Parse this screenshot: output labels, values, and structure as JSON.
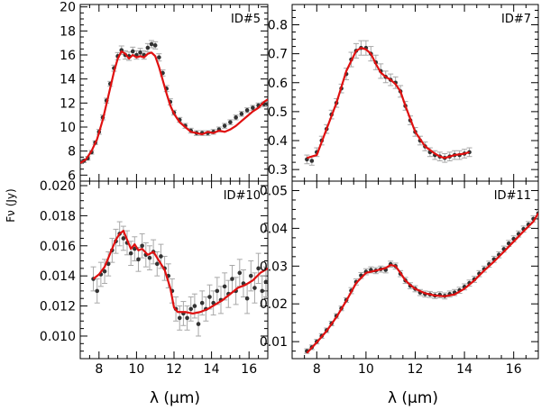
{
  "figure": {
    "ylabel": "Fν (Jy)",
    "xlabel_left": "λ (μm)",
    "xlabel_right": "λ (μm)"
  },
  "colors": {
    "model": "#e01010",
    "data": "#333333",
    "errorbar": "#a8a8a8",
    "axis": "#000000"
  },
  "chart_data": [
    {
      "id": "panel-id5",
      "type": "scatter",
      "title": "ID#5",
      "xlim": [
        7,
        17
      ],
      "ylim": [
        5.5,
        20.2
      ],
      "xticks": [
        8,
        10,
        12,
        14,
        16
      ],
      "yticks": [
        6,
        8,
        10,
        12,
        14,
        16,
        18,
        20
      ],
      "show_x_ticklabels": false,
      "series": [
        {
          "role": "data-with-errors",
          "x": [
            7.0,
            7.2,
            7.4,
            7.6,
            7.8,
            8.0,
            8.2,
            8.4,
            8.6,
            8.8,
            9.0,
            9.2,
            9.4,
            9.6,
            9.8,
            10.0,
            10.2,
            10.4,
            10.6,
            10.8,
            11.0,
            11.2,
            11.4,
            11.6,
            11.8,
            12.0,
            12.3,
            12.6,
            12.9,
            13.2,
            13.5,
            13.8,
            14.1,
            14.4,
            14.7,
            15.0,
            15.3,
            15.6,
            15.9,
            16.2,
            16.5,
            16.8,
            17.0
          ],
          "y": [
            7.1,
            7.2,
            7.4,
            7.9,
            8.7,
            9.6,
            10.8,
            12.2,
            13.6,
            14.9,
            15.9,
            16.4,
            16.0,
            15.9,
            16.3,
            16.0,
            16.2,
            16.0,
            16.6,
            16.9,
            16.8,
            15.8,
            14.5,
            13.2,
            12.1,
            11.2,
            10.6,
            10.1,
            9.7,
            9.5,
            9.5,
            9.5,
            9.6,
            9.8,
            10.1,
            10.4,
            10.8,
            11.1,
            11.4,
            11.6,
            11.8,
            11.9,
            11.9
          ],
          "err": [
            0.15,
            0.15,
            0.15,
            0.15,
            0.15,
            0.2,
            0.2,
            0.2,
            0.2,
            0.25,
            0.3,
            0.35,
            0.35,
            0.35,
            0.35,
            0.35,
            0.35,
            0.35,
            0.35,
            0.3,
            0.3,
            0.3,
            0.25,
            0.25,
            0.25,
            0.2,
            0.2,
            0.2,
            0.2,
            0.2,
            0.2,
            0.2,
            0.2,
            0.2,
            0.2,
            0.2,
            0.2,
            0.2,
            0.2,
            0.2,
            0.2,
            0.2,
            0.2
          ]
        },
        {
          "role": "model",
          "x": [
            7.0,
            7.3,
            7.6,
            7.9,
            8.2,
            8.5,
            8.8,
            9.0,
            9.2,
            9.4,
            9.6,
            9.8,
            10.0,
            10.2,
            10.4,
            10.6,
            10.8,
            11.0,
            11.2,
            11.4,
            11.6,
            11.8,
            12.0,
            12.3,
            12.6,
            12.9,
            13.2,
            13.5,
            13.8,
            14.1,
            14.4,
            14.7,
            15.0,
            15.3,
            15.6,
            15.9,
            16.2,
            16.5,
            16.8,
            17.0
          ],
          "y": [
            7.0,
            7.3,
            8.0,
            9.0,
            10.6,
            12.6,
            14.6,
            15.7,
            16.3,
            16.1,
            15.7,
            16.0,
            15.8,
            15.9,
            15.8,
            16.1,
            16.2,
            15.9,
            15.0,
            13.9,
            12.8,
            11.8,
            11.1,
            10.4,
            10.0,
            9.6,
            9.5,
            9.4,
            9.6,
            9.5,
            9.7,
            9.6,
            9.8,
            10.1,
            10.5,
            10.9,
            11.3,
            11.6,
            12.1,
            12.3
          ]
        }
      ]
    },
    {
      "id": "panel-id7",
      "type": "scatter",
      "title": "ID#7",
      "xlim": [
        7,
        17
      ],
      "ylim": [
        0.26,
        0.87
      ],
      "xticks": [
        8,
        10,
        12,
        14,
        16
      ],
      "yticks": [
        0.3,
        0.4,
        0.5,
        0.6,
        0.7,
        0.8
      ],
      "show_x_ticklabels": false,
      "series": [
        {
          "role": "data-with-errors",
          "x": [
            7.6,
            7.8,
            8.0,
            8.2,
            8.4,
            8.6,
            8.8,
            9.0,
            9.2,
            9.4,
            9.6,
            9.8,
            10.0,
            10.2,
            10.4,
            10.6,
            10.8,
            11.0,
            11.2,
            11.4,
            11.6,
            11.8,
            12.0,
            12.2,
            12.4,
            12.6,
            12.8,
            13.0,
            13.2,
            13.4,
            13.6,
            13.8,
            14.0,
            14.2
          ],
          "y": [
            0.335,
            0.33,
            0.36,
            0.4,
            0.44,
            0.49,
            0.53,
            0.58,
            0.63,
            0.68,
            0.71,
            0.72,
            0.72,
            0.7,
            0.67,
            0.64,
            0.62,
            0.61,
            0.6,
            0.57,
            0.52,
            0.47,
            0.43,
            0.4,
            0.38,
            0.36,
            0.35,
            0.345,
            0.34,
            0.345,
            0.35,
            0.35,
            0.355,
            0.36
          ],
          "err": [
            0.015,
            0.015,
            0.015,
            0.015,
            0.015,
            0.015,
            0.015,
            0.015,
            0.02,
            0.025,
            0.025,
            0.025,
            0.025,
            0.025,
            0.025,
            0.025,
            0.02,
            0.02,
            0.02,
            0.02,
            0.015,
            0.015,
            0.015,
            0.015,
            0.015,
            0.015,
            0.015,
            0.015,
            0.015,
            0.015,
            0.015,
            0.015,
            0.015,
            0.015
          ]
        },
        {
          "role": "model",
          "x": [
            7.6,
            8.0,
            8.4,
            8.8,
            9.2,
            9.6,
            9.8,
            10.0,
            10.2,
            10.4,
            10.6,
            10.8,
            11.0,
            11.2,
            11.4,
            11.6,
            11.8,
            12.0,
            12.4,
            12.8,
            13.0,
            13.2,
            13.6,
            14.0,
            14.2
          ],
          "y": [
            0.34,
            0.35,
            0.44,
            0.53,
            0.64,
            0.71,
            0.72,
            0.715,
            0.7,
            0.665,
            0.635,
            0.62,
            0.61,
            0.595,
            0.57,
            0.52,
            0.475,
            0.43,
            0.38,
            0.355,
            0.345,
            0.34,
            0.35,
            0.355,
            0.36
          ]
        }
      ]
    },
    {
      "id": "panel-id10",
      "type": "scatter",
      "title": "ID#10",
      "xlim": [
        7,
        17
      ],
      "ylim": [
        0.0085,
        0.0203
      ],
      "xticks": [
        8,
        10,
        12,
        14,
        16
      ],
      "yticks": [
        0.01,
        0.012,
        0.014,
        0.016,
        0.018,
        0.02
      ],
      "ytick_labels": [
        "0.010",
        "0.012",
        "0.014",
        "0.016",
        "0.018",
        "0.020"
      ],
      "show_x_ticklabels": true,
      "series": [
        {
          "role": "data-with-errors",
          "x": [
            7.7,
            7.9,
            8.1,
            8.3,
            8.5,
            8.7,
            8.9,
            9.1,
            9.3,
            9.5,
            9.7,
            9.9,
            10.1,
            10.3,
            10.5,
            10.7,
            10.9,
            11.1,
            11.3,
            11.5,
            11.7,
            11.9,
            12.1,
            12.3,
            12.5,
            12.7,
            12.9,
            13.1,
            13.3,
            13.5,
            13.7,
            13.9,
            14.1,
            14.3,
            14.5,
            14.7,
            14.9,
            15.1,
            15.3,
            15.5,
            15.7,
            15.9,
            16.1,
            16.3,
            16.5,
            16.7,
            16.9
          ],
          "y": [
            0.0138,
            0.013,
            0.0141,
            0.0143,
            0.0148,
            0.0157,
            0.0163,
            0.0168,
            0.0165,
            0.0162,
            0.0155,
            0.0158,
            0.0151,
            0.016,
            0.0154,
            0.0152,
            0.0156,
            0.0148,
            0.0153,
            0.0145,
            0.014,
            0.013,
            0.0118,
            0.0112,
            0.0115,
            0.0112,
            0.0118,
            0.012,
            0.0108,
            0.0122,
            0.0118,
            0.0126,
            0.0122,
            0.013,
            0.0124,
            0.0133,
            0.0128,
            0.0138,
            0.013,
            0.0142,
            0.0135,
            0.0125,
            0.014,
            0.0132,
            0.0145,
            0.013,
            0.0136
          ],
          "err": [
            0.0008,
            0.0008,
            0.0008,
            0.0008,
            0.0008,
            0.0008,
            0.0008,
            0.0008,
            0.0008,
            0.0008,
            0.0008,
            0.0008,
            0.0008,
            0.0008,
            0.0008,
            0.0008,
            0.0008,
            0.0008,
            0.0008,
            0.0008,
            0.0008,
            0.0008,
            0.0008,
            0.0008,
            0.0008,
            0.0008,
            0.0008,
            0.0008,
            0.0008,
            0.0008,
            0.0008,
            0.0008,
            0.0008,
            0.0009,
            0.0009,
            0.0009,
            0.0009,
            0.0009,
            0.0009,
            0.0009,
            0.0009,
            0.001,
            0.001,
            0.001,
            0.001,
            0.001,
            0.001
          ]
        },
        {
          "role": "model",
          "x": [
            7.7,
            8.0,
            8.3,
            8.6,
            8.9,
            9.1,
            9.3,
            9.5,
            9.7,
            9.9,
            10.1,
            10.3,
            10.6,
            10.9,
            11.2,
            11.5,
            11.8,
            12.0,
            12.2,
            12.6,
            13.0,
            13.4,
            13.8,
            14.2,
            14.6,
            15.0,
            15.4,
            15.8,
            16.2,
            16.6,
            17.0
          ],
          "y": [
            0.0138,
            0.0141,
            0.0146,
            0.0155,
            0.0164,
            0.0168,
            0.017,
            0.0164,
            0.0158,
            0.0161,
            0.0157,
            0.0158,
            0.0154,
            0.0156,
            0.015,
            0.0144,
            0.0132,
            0.0119,
            0.0116,
            0.0116,
            0.0115,
            0.0116,
            0.0118,
            0.0121,
            0.0124,
            0.0128,
            0.0132,
            0.0134,
            0.0137,
            0.0142,
            0.0145
          ]
        }
      ]
    },
    {
      "id": "panel-id11",
      "type": "scatter",
      "title": "ID#11",
      "xlim": [
        7,
        17
      ],
      "ylim": [
        0.0055,
        0.0525
      ],
      "xticks": [
        8,
        10,
        12,
        14,
        16
      ],
      "yticks": [
        0.01,
        0.02,
        0.03,
        0.04,
        0.05
      ],
      "ytick_labels": [
        "0.01",
        "0.02",
        "0.03",
        "0.04",
        "0.05"
      ],
      "show_x_ticklabels": true,
      "series": [
        {
          "role": "data-with-errors",
          "x": [
            7.6,
            7.8,
            8.0,
            8.2,
            8.4,
            8.6,
            8.8,
            9.0,
            9.2,
            9.4,
            9.6,
            9.8,
            10.0,
            10.2,
            10.4,
            10.6,
            10.8,
            11.0,
            11.2,
            11.4,
            11.6,
            11.8,
            12.0,
            12.2,
            12.4,
            12.6,
            12.8,
            13.0,
            13.2,
            13.4,
            13.6,
            13.8,
            14.0,
            14.2,
            14.4,
            14.6,
            14.8,
            15.0,
            15.2,
            15.4,
            15.6,
            15.8,
            16.0,
            16.2,
            16.4,
            16.6,
            16.8,
            17.0
          ],
          "y": [
            0.0075,
            0.0085,
            0.01,
            0.0115,
            0.013,
            0.0148,
            0.0168,
            0.0188,
            0.021,
            0.0235,
            0.0258,
            0.0275,
            0.0285,
            0.029,
            0.0288,
            0.0292,
            0.029,
            0.0305,
            0.03,
            0.028,
            0.0262,
            0.0248,
            0.024,
            0.023,
            0.0226,
            0.0225,
            0.0222,
            0.0224,
            0.0221,
            0.0226,
            0.023,
            0.0236,
            0.0245,
            0.0255,
            0.0265,
            0.028,
            0.0292,
            0.0305,
            0.0318,
            0.033,
            0.0345,
            0.036,
            0.0372,
            0.0385,
            0.0398,
            0.041,
            0.0425,
            0.044
          ],
          "err": [
            0.0006,
            0.0006,
            0.0006,
            0.0006,
            0.0006,
            0.0006,
            0.0006,
            0.0006,
            0.0006,
            0.0008,
            0.0008,
            0.0008,
            0.0008,
            0.0008,
            0.0008,
            0.0008,
            0.0008,
            0.0008,
            0.0008,
            0.0008,
            0.0008,
            0.0008,
            0.0008,
            0.0008,
            0.0008,
            0.0008,
            0.0008,
            0.0008,
            0.0008,
            0.0008,
            0.0008,
            0.0008,
            0.0008,
            0.0008,
            0.0008,
            0.0008,
            0.0008,
            0.0008,
            0.0008,
            0.0008,
            0.0008,
            0.0008,
            0.0008,
            0.0008,
            0.0008,
            0.0008,
            0.0008,
            0.0008
          ]
        },
        {
          "role": "model",
          "x": [
            7.6,
            8.0,
            8.4,
            8.8,
            9.2,
            9.6,
            10.0,
            10.4,
            10.8,
            11.0,
            11.2,
            11.4,
            11.6,
            11.8,
            12.0,
            12.4,
            12.8,
            13.2,
            13.6,
            14.0,
            14.4,
            14.8,
            15.2,
            15.6,
            16.0,
            16.4,
            16.8,
            17.0
          ],
          "y": [
            0.007,
            0.0098,
            0.0128,
            0.0165,
            0.0208,
            0.0255,
            0.0282,
            0.0288,
            0.0295,
            0.0303,
            0.03,
            0.0282,
            0.0262,
            0.025,
            0.024,
            0.0228,
            0.0222,
            0.022,
            0.0225,
            0.024,
            0.0262,
            0.0288,
            0.0312,
            0.0338,
            0.0365,
            0.0392,
            0.0418,
            0.044
          ]
        }
      ]
    }
  ]
}
